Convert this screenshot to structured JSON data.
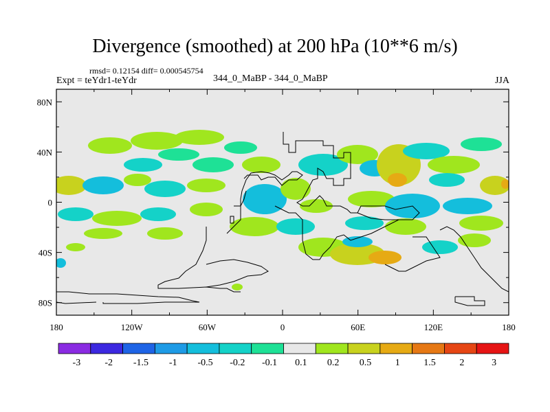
{
  "chart_data": {
    "type": "heatmap",
    "title": "Divergence (smoothed) at 200 hPa (10**6 m/s)",
    "stats_text": "rmsd= 0.12154 diff= 0.000545754",
    "experiment_label": "Expt = teYdr1-teYdr",
    "cases_label": "344_0_MaBP - 344_0_MaBP",
    "season": "JJA",
    "x_ticks": [
      "180",
      "120W",
      "60W",
      "0",
      "60E",
      "120E",
      "180"
    ],
    "y_ticks": [
      "80N",
      "40N",
      "0",
      "40S",
      "80S"
    ],
    "xlim": [
      -180,
      180
    ],
    "ylim": [
      -90,
      90
    ],
    "colorbar": {
      "labels": [
        "-3",
        "-2",
        "-1.5",
        "-1",
        "-0.5",
        "-0.2",
        "-0.1",
        "0.1",
        "0.2",
        "0.5",
        "1",
        "1.5",
        "2",
        "3"
      ],
      "colors": [
        "#8a2be2",
        "#3c28e0",
        "#1e64e6",
        "#1e9be6",
        "#14bedc",
        "#14d2c8",
        "#1ee196",
        "#e8e8e8",
        "#a0e61e",
        "#c8d21e",
        "#e6aa14",
        "#e67814",
        "#e64614",
        "#e61414"
      ]
    },
    "land_fill": "#e8e8e8"
  }
}
